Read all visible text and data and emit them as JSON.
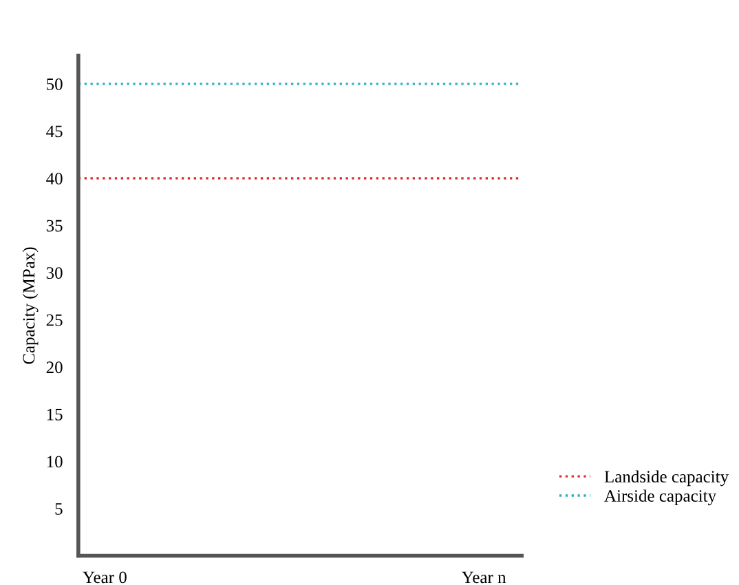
{
  "chart_data": {
    "type": "line",
    "categories": [
      "Year 0",
      "Year n"
    ],
    "ylabel": "Capacity (MPax)",
    "ylim": [
      0,
      53
    ],
    "yticks": [
      5,
      10,
      15,
      20,
      25,
      30,
      35,
      40,
      45,
      50
    ],
    "grid": false,
    "legend": "bottom right",
    "ref_lines": [
      {
        "axis": "y",
        "value": 40,
        "label": "Landside capacity",
        "color": "#e03030",
        "line_style": "dotted"
      },
      {
        "axis": "y",
        "value": 50,
        "label": "Airside capacity",
        "color": "#30b0c0",
        "line_style": "dotted"
      }
    ]
  }
}
